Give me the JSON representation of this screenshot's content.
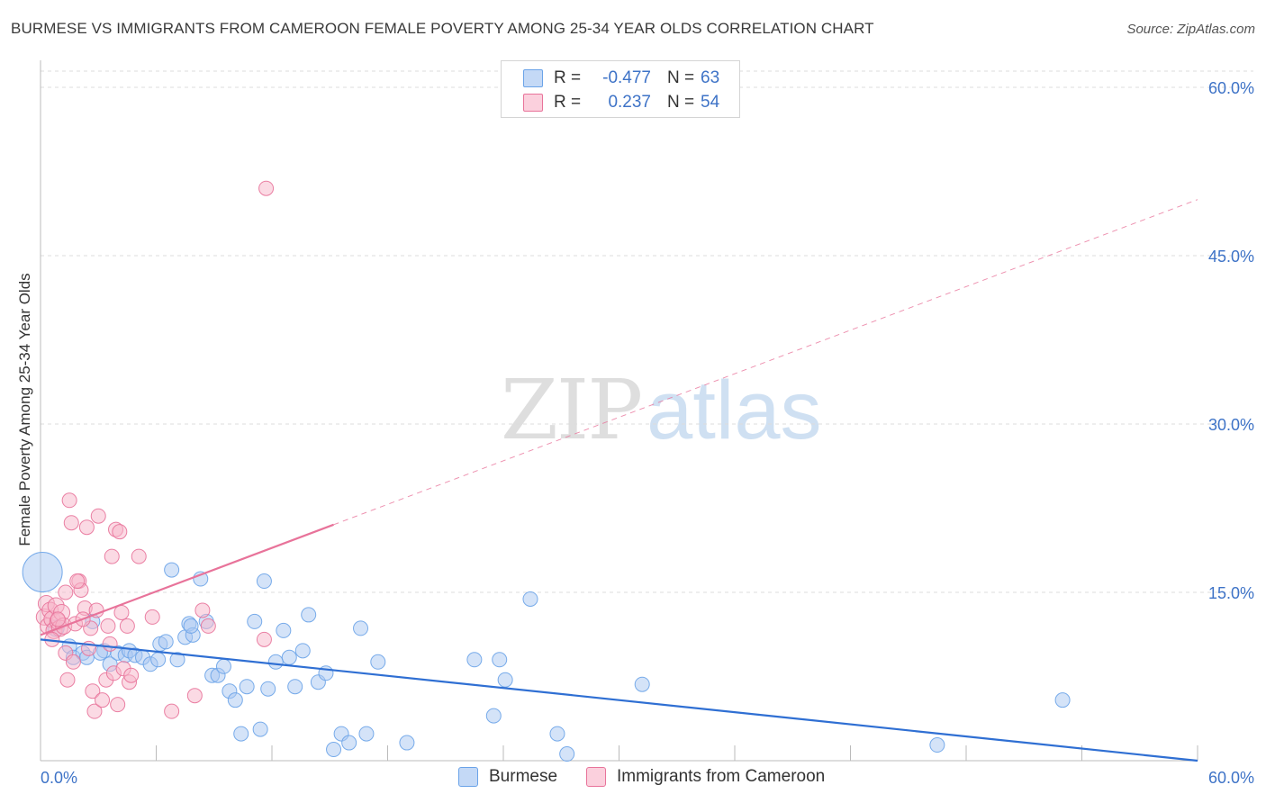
{
  "title": "BURMESE VS IMMIGRANTS FROM CAMEROON FEMALE POVERTY AMONG 25-34 YEAR OLDS CORRELATION CHART",
  "source": "Source: ZipAtlas.com",
  "watermark": {
    "zip": "ZIP",
    "atlas": "atlas"
  },
  "legend": {
    "rows": [
      {
        "r_label": "R =",
        "r_value": "-0.477",
        "n_label": "N =",
        "n_value": "63",
        "color": "#a9c8f2"
      },
      {
        "r_label": "R =",
        "r_value": "0.237",
        "n_label": "N =",
        "n_value": "54",
        "color": "#f7b6c9"
      }
    ]
  },
  "bottom_legend": [
    {
      "label": "Burmese",
      "color": "#a9c8f2"
    },
    {
      "label": "Immigrants from Cameroon",
      "color": "#f7b6c9"
    }
  ],
  "chart_data": {
    "type": "scatter",
    "title": "BURMESE VS IMMIGRANTS FROM CAMEROON FEMALE POVERTY AMONG 25-34 YEAR OLDS CORRELATION CHART",
    "xlabel": "",
    "ylabel": "Female Poverty Among 25-34 Year Olds",
    "xlim": [
      0,
      60
    ],
    "ylim": [
      0,
      60
    ],
    "x_tick_labels": [
      "0.0%",
      "60.0%"
    ],
    "y_tick_values": [
      15,
      30,
      45,
      60
    ],
    "y_tick_labels": [
      "15.0%",
      "30.0%",
      "45.0%",
      "60.0%"
    ],
    "grid": true,
    "series": [
      {
        "name": "Burmese",
        "color": "#6aa3e8",
        "fill": "#a9c8f2",
        "trend": {
          "x": [
            0,
            60
          ],
          "y": [
            10.8,
            0.0
          ],
          "dashed_from": null
        },
        "points": [
          [
            0.1,
            16.8,
            22
          ],
          [
            0.8,
            11.8,
            9
          ],
          [
            1.5,
            10.2,
            8
          ],
          [
            1.7,
            9.2,
            8
          ],
          [
            2.2,
            9.6,
            8
          ],
          [
            2.4,
            9.2,
            8
          ],
          [
            2.7,
            12.4,
            8
          ],
          [
            3.3,
            9.8,
            8
          ],
          [
            3.6,
            8.6,
            8
          ],
          [
            4.0,
            9.6,
            8
          ],
          [
            4.4,
            9.4,
            8
          ],
          [
            4.6,
            9.8,
            8
          ],
          [
            4.9,
            9.4,
            8
          ],
          [
            5.3,
            9.2,
            8
          ],
          [
            5.7,
            8.6,
            8
          ],
          [
            6.1,
            9.0,
            8
          ],
          [
            6.2,
            10.4,
            8
          ],
          [
            6.5,
            10.6,
            8
          ],
          [
            6.8,
            17.0,
            8
          ],
          [
            7.1,
            9.0,
            8
          ],
          [
            7.5,
            11.0,
            8
          ],
          [
            7.7,
            12.2,
            8
          ],
          [
            7.9,
            11.2,
            8
          ],
          [
            8.3,
            16.2,
            8
          ],
          [
            8.6,
            12.4,
            8
          ],
          [
            8.9,
            7.6,
            8
          ],
          [
            9.2,
            7.6,
            8
          ],
          [
            9.5,
            8.4,
            8
          ],
          [
            9.8,
            6.2,
            8
          ],
          [
            10.1,
            5.4,
            8
          ],
          [
            10.4,
            2.4,
            8
          ],
          [
            10.7,
            6.6,
            8
          ],
          [
            11.1,
            12.4,
            8
          ],
          [
            11.4,
            2.8,
            8
          ],
          [
            11.6,
            16.0,
            8
          ],
          [
            11.8,
            6.4,
            8
          ],
          [
            12.2,
            8.8,
            8
          ],
          [
            12.6,
            11.6,
            8
          ],
          [
            12.9,
            9.2,
            8
          ],
          [
            13.2,
            6.6,
            8
          ],
          [
            13.6,
            9.8,
            8
          ],
          [
            13.9,
            13.0,
            8
          ],
          [
            14.4,
            7.0,
            8
          ],
          [
            14.8,
            7.8,
            8
          ],
          [
            15.2,
            1.0,
            8
          ],
          [
            15.6,
            2.4,
            8
          ],
          [
            16.0,
            1.6,
            8
          ],
          [
            16.6,
            11.8,
            8
          ],
          [
            16.9,
            2.4,
            8
          ],
          [
            17.5,
            8.8,
            8
          ],
          [
            19.0,
            1.6,
            8
          ],
          [
            22.5,
            9.0,
            8
          ],
          [
            23.5,
            4.0,
            8
          ],
          [
            23.8,
            9.0,
            8
          ],
          [
            24.1,
            7.2,
            8
          ],
          [
            25.4,
            14.4,
            8
          ],
          [
            26.8,
            2.4,
            8
          ],
          [
            27.3,
            0.6,
            8
          ],
          [
            31.2,
            6.8,
            8
          ],
          [
            46.5,
            1.4,
            8
          ],
          [
            53.0,
            5.4,
            8
          ],
          [
            7.8,
            12.0,
            8
          ],
          [
            3.1,
            9.6,
            8
          ]
        ]
      },
      {
        "name": "Immigrants from Cameroon",
        "color": "#e8739a",
        "fill": "#f7b6c9",
        "trend": {
          "x": [
            0,
            60
          ],
          "y": [
            11.2,
            50.0
          ],
          "dashed_from": 15.2
        },
        "points": [
          [
            0.2,
            12.8,
            9
          ],
          [
            0.3,
            14.0,
            9
          ],
          [
            0.4,
            12.0,
            9
          ],
          [
            0.5,
            13.4,
            9
          ],
          [
            0.6,
            12.6,
            9
          ],
          [
            0.7,
            11.6,
            9
          ],
          [
            0.8,
            13.8,
            9
          ],
          [
            0.9,
            12.4,
            9
          ],
          [
            1.0,
            11.8,
            9
          ],
          [
            1.1,
            13.2,
            9
          ],
          [
            1.2,
            12.0,
            9
          ],
          [
            1.3,
            9.6,
            8
          ],
          [
            1.4,
            7.2,
            8
          ],
          [
            1.5,
            23.2,
            8
          ],
          [
            1.6,
            21.2,
            8
          ],
          [
            1.7,
            8.8,
            8
          ],
          [
            1.8,
            12.2,
            8
          ],
          [
            2.0,
            16.0,
            8
          ],
          [
            2.1,
            15.2,
            8
          ],
          [
            2.3,
            13.6,
            8
          ],
          [
            2.4,
            20.8,
            8
          ],
          [
            2.5,
            10.0,
            8
          ],
          [
            2.6,
            11.8,
            8
          ],
          [
            2.7,
            6.2,
            8
          ],
          [
            2.8,
            4.4,
            8
          ],
          [
            2.9,
            13.4,
            8
          ],
          [
            3.0,
            21.8,
            8
          ],
          [
            3.2,
            5.4,
            8
          ],
          [
            3.4,
            7.2,
            8
          ],
          [
            3.5,
            12.0,
            8
          ],
          [
            3.6,
            10.4,
            8
          ],
          [
            3.7,
            18.2,
            8
          ],
          [
            3.8,
            7.8,
            8
          ],
          [
            3.9,
            20.6,
            8
          ],
          [
            4.0,
            5.0,
            8
          ],
          [
            4.1,
            20.4,
            8
          ],
          [
            4.2,
            13.2,
            8
          ],
          [
            4.3,
            8.2,
            8
          ],
          [
            4.5,
            12.0,
            8
          ],
          [
            4.6,
            7.0,
            8
          ],
          [
            4.7,
            7.6,
            8
          ],
          [
            5.1,
            18.2,
            8
          ],
          [
            5.8,
            12.8,
            8
          ],
          [
            6.8,
            4.4,
            8
          ],
          [
            8.0,
            5.8,
            8
          ],
          [
            8.4,
            13.4,
            8
          ],
          [
            8.7,
            12.0,
            8
          ],
          [
            11.6,
            10.8,
            8
          ],
          [
            11.7,
            51.0,
            8
          ],
          [
            1.9,
            16.0,
            8
          ],
          [
            0.6,
            10.8,
            8
          ],
          [
            1.3,
            15.0,
            8
          ],
          [
            2.2,
            12.6,
            8
          ],
          [
            0.9,
            12.6,
            8
          ]
        ]
      }
    ]
  }
}
